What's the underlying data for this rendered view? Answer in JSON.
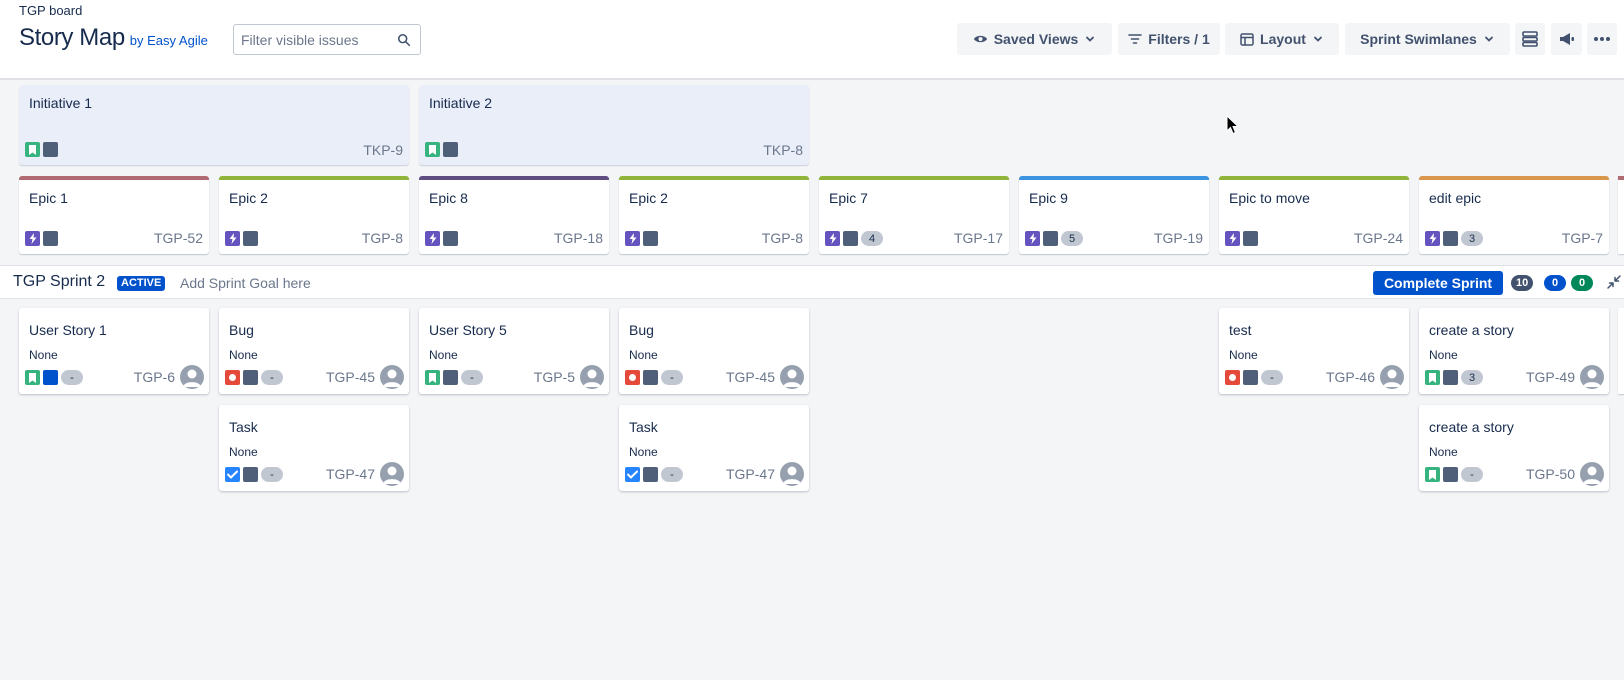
{
  "header": {
    "breadcrumb": "TGP board",
    "title": "Story Map",
    "byline": "by Easy Agile",
    "search_placeholder": "Filter visible issues",
    "saved_views": "Saved Views",
    "filters": "Filters / 1",
    "layout": "Layout",
    "swimlanes": "Sprint Swimlanes"
  },
  "initiatives": [
    {
      "title": "Initiative 1",
      "key": "TKP-9"
    },
    {
      "title": "Initiative 2",
      "key": "TKP-8"
    }
  ],
  "epics": [
    {
      "title": "Epic 1",
      "key": "TGP-52",
      "color": "#b06a72",
      "count": ""
    },
    {
      "title": "Epic 2",
      "key": "TGP-8",
      "color": "#8fb33b",
      "count": ""
    },
    {
      "title": "Epic 8",
      "key": "TGP-18",
      "color": "#5e4d7f",
      "count": ""
    },
    {
      "title": "Epic 2",
      "key": "TGP-8",
      "color": "#8fb33b",
      "count": ""
    },
    {
      "title": "Epic 7",
      "key": "TGP-17",
      "color": "#8fb33b",
      "count": "4"
    },
    {
      "title": "Epic 9",
      "key": "TGP-19",
      "color": "#3c93e0",
      "count": "5"
    },
    {
      "title": "Epic to move",
      "key": "TGP-24",
      "color": "#8fb33b",
      "count": ""
    },
    {
      "title": "edit epic",
      "key": "TGP-7",
      "color": "#d9974e",
      "count": "3"
    }
  ],
  "sprint": {
    "name": "TGP Sprint 2",
    "badge": "ACTIVE",
    "goal": "Add Sprint Goal here",
    "complete_label": "Complete Sprint",
    "counts": [
      {
        "value": "10",
        "color": "#42526e"
      },
      {
        "value": "0",
        "color": "#0052cc"
      },
      {
        "value": "0",
        "color": "#00875a"
      }
    ]
  },
  "stories": [
    {
      "title": "User Story 1",
      "sub": "None",
      "key": "TGP-6",
      "type": "story",
      "pill": "-",
      "sq": "blue"
    },
    {
      "title": "Bug",
      "sub": "None",
      "key": "TGP-45",
      "type": "bug",
      "pill": "-",
      "sq": "gray"
    },
    {
      "title": "Task",
      "sub": "None",
      "key": "TGP-47",
      "type": "task",
      "pill": "-",
      "sq": "gray"
    },
    {
      "title": "User Story 5",
      "sub": "None",
      "key": "TGP-5",
      "type": "story",
      "pill": "-",
      "sq": "gray"
    },
    {
      "title": "Bug",
      "sub": "None",
      "key": "TGP-45",
      "type": "bug",
      "pill": "-",
      "sq": "gray"
    },
    {
      "title": "Task",
      "sub": "None",
      "key": "TGP-47",
      "type": "task",
      "pill": "-",
      "sq": "gray"
    },
    {
      "title": "test",
      "sub": "None",
      "key": "TGP-46",
      "type": "bug",
      "pill": "-",
      "sq": "gray"
    },
    {
      "title": "create a story",
      "sub": "None",
      "key": "TGP-49",
      "type": "story",
      "pill": "3",
      "sq": "gray"
    },
    {
      "title": "create a story",
      "sub": "None",
      "key": "TGP-50",
      "type": "story",
      "pill": "-",
      "sq": "gray"
    }
  ],
  "icons": {
    "search": "search-icon",
    "eye": "eye-icon",
    "filter": "filter-icon",
    "layout": "layout-icon",
    "chevron": "chevron-down-icon",
    "stack": "stack-icon",
    "megaphone": "megaphone-icon",
    "more": "more-icon",
    "avatar": "avatar-icon",
    "collapse": "collapse-icon",
    "cursor": "cursor-icon"
  }
}
